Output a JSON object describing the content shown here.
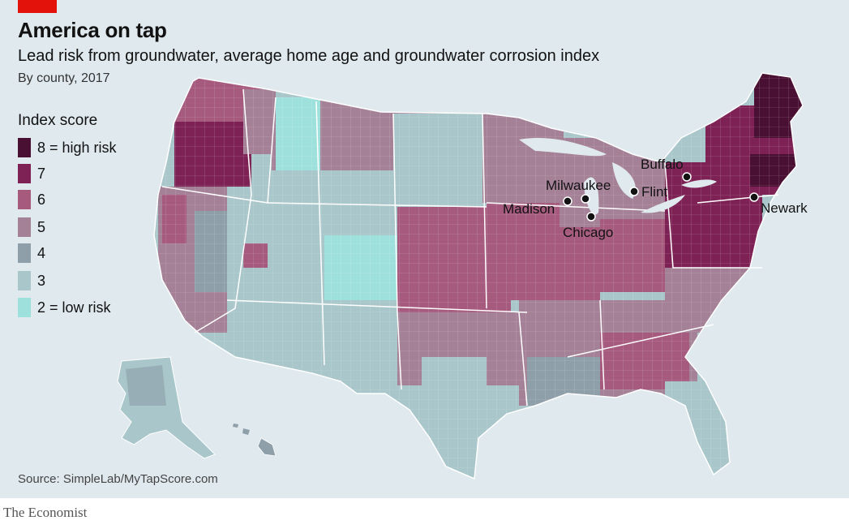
{
  "header": {
    "title": "America on tap",
    "subtitle": "Lead risk from groundwater, average home age and groundwater corrosion index",
    "byline": "By county, 2017"
  },
  "legend": {
    "title": "Index score",
    "items": [
      {
        "label": "8 = high risk",
        "color": "#4a1033"
      },
      {
        "label": "7",
        "color": "#7e2256"
      },
      {
        "label": "6",
        "color": "#a65a7e"
      },
      {
        "label": "5",
        "color": "#a58197"
      },
      {
        "label": "4",
        "color": "#8e9fa9"
      },
      {
        "label": "3",
        "color": "#a9c6ca"
      },
      {
        "label": "2 = low risk",
        "color": "#9ee0dc"
      }
    ]
  },
  "cities": [
    {
      "name": "Buffalo"
    },
    {
      "name": "Milwaukee"
    },
    {
      "name": "Flint"
    },
    {
      "name": "Madison"
    },
    {
      "name": "Newark"
    },
    {
      "name": "Chicago"
    }
  ],
  "source": "Source: SimpleLab/MyTapScore.com",
  "brand": "The Economist"
}
